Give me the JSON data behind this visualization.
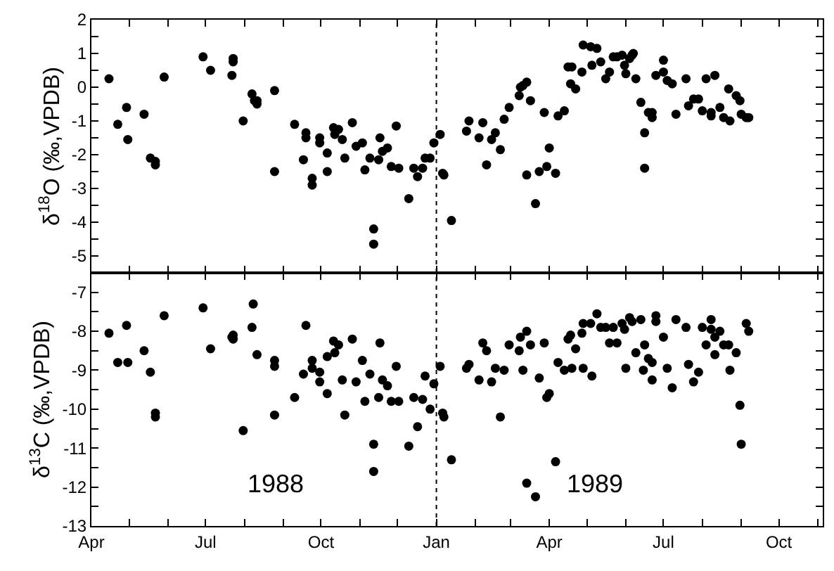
{
  "chart_data": [
    {
      "type": "scatter",
      "ylabel": "δ$^{18}$O (‰,VPDB)",
      "marker": "circle",
      "tick_labels": "y",
      "xlim": [
        "1988-04-01",
        "1989-11-05"
      ],
      "xticks": [
        {
          "value": "1988-04-01",
          "label": null
        },
        {
          "value": "1988-05-01",
          "label": null
        },
        {
          "value": "1988-06-01",
          "label": null
        },
        {
          "value": "1988-07-01",
          "label": null
        },
        {
          "value": "1988-08-01",
          "label": null
        },
        {
          "value": "1988-09-01",
          "label": null
        },
        {
          "value": "1988-10-01",
          "label": null
        },
        {
          "value": "1988-11-01",
          "label": null
        },
        {
          "value": "1988-12-01",
          "label": null
        },
        {
          "value": "1989-01-01",
          "label": null
        },
        {
          "value": "1989-02-01",
          "label": null
        },
        {
          "value": "1989-03-01",
          "label": null
        },
        {
          "value": "1989-04-01",
          "label": null
        },
        {
          "value": "1989-05-01",
          "label": null
        },
        {
          "value": "1989-06-01",
          "label": null
        },
        {
          "value": "1989-07-01",
          "label": null
        },
        {
          "value": "1989-08-01",
          "label": null
        },
        {
          "value": "1989-09-01",
          "label": null
        },
        {
          "value": "1989-10-01",
          "label": null
        },
        {
          "value": "1989-11-01",
          "label": null
        }
      ],
      "ylim": [
        -5.5,
        2
      ],
      "yticks": [
        -5,
        {
          "value": -4.5,
          "label": null
        },
        -4,
        {
          "value": -3.5,
          "label": null
        },
        -3,
        {
          "value": -2.5,
          "label": null
        },
        -2,
        {
          "value": -1.5,
          "label": null
        },
        -1,
        {
          "value": -0.5,
          "label": null
        },
        0,
        {
          "value": 0.5,
          "label": null
        },
        1,
        {
          "value": 1.5,
          "label": null
        },
        2
      ],
      "ref_lines": [
        {
          "axis": "x",
          "value": "1989-01-01",
          "line_style": "dotted",
          "color": "#000000"
        }
      ],
      "x": [
        "1988-04-15",
        "1988-04-22",
        "1988-04-29",
        "1988-04-30",
        "1988-05-13",
        "1988-05-18",
        "1988-05-22",
        "1988-05-22",
        "1988-05-29",
        "1988-06-29",
        "1988-07-05",
        "1988-07-22",
        "1988-07-23",
        "1988-07-23",
        "1988-07-31",
        "1988-08-07",
        "1988-08-09",
        "1988-08-11",
        "1988-08-11",
        "1988-08-25",
        "1988-08-25",
        "1988-09-10",
        "1988-09-17",
        "1988-09-19",
        "1988-09-19",
        "1988-09-24",
        "1988-09-24",
        "1988-09-30",
        "1988-09-30",
        "1988-10-06",
        "1988-10-06",
        "1988-10-11",
        "1988-10-12",
        "1988-10-15",
        "1988-10-18",
        "1988-10-20",
        "1988-10-26",
        "1988-10-29",
        "1988-11-03",
        "1988-11-05",
        "1988-11-09",
        "1988-11-12",
        "1988-11-12",
        "1988-11-16",
        "1988-11-17",
        "1988-11-19",
        "1988-11-23",
        "1988-11-26",
        "1988-11-30",
        "1988-12-02",
        "1988-12-10",
        "1988-12-14",
        "1988-12-17",
        "1988-12-21",
        "1988-12-23",
        "1988-12-27",
        "1988-12-30",
        "1989-01-04",
        "1989-01-06",
        "1989-01-07",
        "1989-01-13",
        "1989-01-25",
        "1989-01-27",
        "1989-02-04",
        "1989-02-07",
        "1989-02-10",
        "1989-02-14",
        "1989-02-17",
        "1989-02-21",
        "1989-02-24",
        "1989-02-28",
        "1989-03-08",
        "1989-03-09",
        "1989-03-11",
        "1989-03-14",
        "1989-03-14",
        "1989-03-17",
        "1989-03-21",
        "1989-03-24",
        "1989-03-28",
        "1989-03-30",
        "1989-04-01",
        "1989-04-06",
        "1989-04-08",
        "1989-04-13",
        "1989-04-16",
        "1989-04-19",
        "1989-04-18",
        "1989-04-22",
        "1989-04-27",
        "1989-04-28",
        "1989-05-04",
        "1989-05-05",
        "1989-05-09",
        "1989-05-12",
        "1989-05-16",
        "1989-05-19",
        "1989-05-22",
        "1989-05-25",
        "1989-05-29",
        "1989-05-31",
        "1989-06-01",
        "1989-06-04",
        "1989-06-06",
        "1989-06-07",
        "1989-06-09",
        "1989-06-13",
        "1989-06-16",
        "1989-06-16",
        "1989-06-19",
        "1989-06-22",
        "1989-06-22",
        "1989-06-25",
        "1989-07-01",
        "1989-07-01",
        "1989-07-04",
        "1989-07-08",
        "1989-07-11",
        "1989-07-19",
        "1989-07-21",
        "1989-07-25",
        "1989-07-29",
        "1989-08-01",
        "1989-08-04",
        "1989-08-08",
        "1989-08-08",
        "1989-08-11",
        "1989-08-15",
        "1989-08-18",
        "1989-08-22",
        "1989-08-23",
        "1989-08-28",
        "1989-08-31",
        "1989-09-01",
        "1989-09-05",
        "1989-09-07"
      ],
      "series": [
        {
          "color": "#000000",
          "values": [
            0.25,
            -1.1,
            -0.6,
            -1.55,
            -0.8,
            -2.1,
            -2.2,
            -2.3,
            0.3,
            0.9,
            0.5,
            0.35,
            0.85,
            0.75,
            -1.0,
            -0.2,
            -0.4,
            -0.4,
            -0.5,
            -0.1,
            -2.5,
            -1.1,
            -2.15,
            -1.35,
            -1.5,
            -2.7,
            -2.9,
            -1.5,
            -1.65,
            -1.95,
            -2.5,
            -1.2,
            -1.4,
            -1.25,
            -1.55,
            -2.1,
            -1.05,
            -1.75,
            -1.65,
            -2.45,
            -2.1,
            -4.2,
            -4.65,
            -2.15,
            -1.5,
            -1.9,
            -1.8,
            -2.35,
            -1.15,
            -2.4,
            -3.3,
            -2.4,
            -2.65,
            -2.4,
            -2.1,
            -2.1,
            -1.65,
            -1.4,
            -2.55,
            -2.6,
            -3.95,
            -1.3,
            -1.0,
            -1.5,
            -1.05,
            -2.3,
            -1.55,
            -1.35,
            -1.85,
            -0.95,
            -0.6,
            -0.25,
            0.0,
            0.05,
            0.15,
            -2.6,
            -0.4,
            -3.45,
            -2.5,
            -0.75,
            -2.35,
            -1.8,
            -2.55,
            -0.85,
            -0.7,
            0.6,
            0.6,
            0.1,
            -0.05,
            0.45,
            1.25,
            1.2,
            0.65,
            1.15,
            0.75,
            0.25,
            0.45,
            0.9,
            0.9,
            0.95,
            0.65,
            0.4,
            0.85,
            0.95,
            1.0,
            0.25,
            -0.45,
            -1.35,
            -2.4,
            -0.75,
            -0.75,
            -0.9,
            0.35,
            0.45,
            0.8,
            0.2,
            0.1,
            -0.8,
            0.25,
            -0.55,
            -0.35,
            -0.35,
            -0.7,
            0.25,
            -0.75,
            -0.85,
            0.35,
            -0.6,
            -0.9,
            -0.05,
            -1.0,
            -0.25,
            -0.4,
            -0.8,
            -0.9,
            -0.9
          ]
        }
      ]
    },
    {
      "type": "scatter",
      "ylabel": "δ$^{13}$C (‰,VPDB)",
      "marker": "circle",
      "xlim": [
        "1988-04-01",
        "1989-11-05"
      ],
      "xticks": [
        {
          "value": "1988-04-01",
          "label": "Apr"
        },
        {
          "value": "1988-05-01",
          "label": null
        },
        {
          "value": "1988-06-01",
          "label": null
        },
        {
          "value": "1988-07-01",
          "label": "Jul"
        },
        {
          "value": "1988-08-01",
          "label": null
        },
        {
          "value": "1988-09-01",
          "label": null
        },
        {
          "value": "1988-10-01",
          "label": "Oct"
        },
        {
          "value": "1988-11-01",
          "label": null
        },
        {
          "value": "1988-12-01",
          "label": null
        },
        {
          "value": "1989-01-01",
          "label": "Jan"
        },
        {
          "value": "1989-02-01",
          "label": null
        },
        {
          "value": "1989-03-01",
          "label": null
        },
        {
          "value": "1989-04-01",
          "label": "Apr"
        },
        {
          "value": "1989-05-01",
          "label": null
        },
        {
          "value": "1989-06-01",
          "label": null
        },
        {
          "value": "1989-07-01",
          "label": "Jul"
        },
        {
          "value": "1989-08-01",
          "label": null
        },
        {
          "value": "1989-09-01",
          "label": null
        },
        {
          "value": "1989-10-01",
          "label": "Oct"
        },
        {
          "value": "1989-11-01",
          "label": null
        }
      ],
      "ylim": [
        -13,
        -6.5
      ],
      "yticks": [
        -13,
        {
          "value": -12.5,
          "label": null
        },
        -12,
        {
          "value": -11.5,
          "label": null
        },
        -11,
        {
          "value": -10.5,
          "label": null
        },
        -10,
        {
          "value": -9.5,
          "label": null
        },
        -9,
        {
          "value": -8.5,
          "label": null
        },
        -8,
        {
          "value": -7.5,
          "label": null
        },
        -7
      ],
      "ref_lines": [
        {
          "axis": "x",
          "value": "1989-01-01",
          "line_style": "dotted",
          "color": "#000000"
        }
      ],
      "annotations": [
        "1988",
        "1989"
      ],
      "x": [
        "1988-04-15",
        "1988-04-22",
        "1988-04-29",
        "1988-04-30",
        "1988-05-13",
        "1988-05-18",
        "1988-05-22",
        "1988-05-22",
        "1988-05-29",
        "1988-06-29",
        "1988-07-05",
        "1988-07-22",
        "1988-07-23",
        "1988-07-23",
        "1988-07-31",
        "1988-08-07",
        "1988-08-08",
        "1988-08-11",
        "1988-08-25",
        "1988-08-25",
        "1988-08-25",
        "1988-09-10",
        "1988-09-17",
        "1988-09-19",
        "1988-09-24",
        "1988-09-24",
        "1988-09-30",
        "1988-09-30",
        "1988-10-06",
        "1988-10-06",
        "1988-10-11",
        "1988-10-12",
        "1988-10-15",
        "1988-10-18",
        "1988-10-20",
        "1988-10-26",
        "1988-10-29",
        "1988-11-03",
        "1988-11-05",
        "1988-11-09",
        "1988-11-12",
        "1988-11-12",
        "1988-11-16",
        "1988-11-17",
        "1988-11-19",
        "1988-11-23",
        "1988-11-26",
        "1988-11-30",
        "1988-12-02",
        "1988-12-10",
        "1988-12-14",
        "1988-12-17",
        "1988-12-21",
        "1988-12-23",
        "1988-12-27",
        "1988-12-30",
        "1989-01-04",
        "1989-01-06",
        "1989-01-07",
        "1989-01-13",
        "1989-01-25",
        "1989-01-27",
        "1989-02-04",
        "1989-02-07",
        "1989-02-10",
        "1989-02-14",
        "1989-02-17",
        "1989-02-21",
        "1989-02-24",
        "1989-02-28",
        "1989-03-08",
        "1989-03-09",
        "1989-03-11",
        "1989-03-14",
        "1989-03-14",
        "1989-03-17",
        "1989-03-21",
        "1989-03-24",
        "1989-03-28",
        "1989-03-30",
        "1989-04-01",
        "1989-04-06",
        "1989-04-08",
        "1989-04-13",
        "1989-04-16",
        "1989-04-18",
        "1989-04-19",
        "1989-04-22",
        "1989-04-27",
        "1989-04-28",
        "1989-04-28",
        "1989-05-04",
        "1989-05-05",
        "1989-05-09",
        "1989-05-12",
        "1989-05-16",
        "1989-05-19",
        "1989-05-22",
        "1989-05-25",
        "1989-05-29",
        "1989-05-31",
        "1989-06-01",
        "1989-06-04",
        "1989-06-06",
        "1989-06-09",
        "1989-06-13",
        "1989-06-15",
        "1989-06-16",
        "1989-06-19",
        "1989-06-22",
        "1989-06-22",
        "1989-06-25",
        "1989-06-25",
        "1989-07-01",
        "1989-07-04",
        "1989-07-08",
        "1989-07-11",
        "1989-07-19",
        "1989-07-21",
        "1989-07-25",
        "1989-07-29",
        "1989-08-01",
        "1989-08-04",
        "1989-08-08",
        "1989-08-08",
        "1989-08-11",
        "1989-08-11",
        "1989-08-15",
        "1989-08-18",
        "1989-08-22",
        "1989-08-23",
        "1989-08-28",
        "1989-08-31",
        "1989-09-01",
        "1989-09-05",
        "1989-09-07"
      ],
      "series": [
        {
          "color": "#000000",
          "values": [
            -8.05,
            -8.8,
            -7.85,
            -8.8,
            -8.5,
            -9.05,
            -10.1,
            -10.2,
            -7.6,
            -7.4,
            -8.45,
            -8.15,
            -8.1,
            -8.2,
            -10.55,
            -7.9,
            -7.3,
            -8.6,
            -8.75,
            -8.9,
            -10.15,
            -9.7,
            -9.1,
            -7.85,
            -8.75,
            -8.95,
            -9.05,
            -9.3,
            -9.6,
            -8.65,
            -8.25,
            -8.55,
            -8.35,
            -9.25,
            -10.15,
            -8.2,
            -9.3,
            -8.75,
            -9.8,
            -9.1,
            -10.9,
            -11.6,
            -9.7,
            -8.3,
            -9.25,
            -9.4,
            -9.8,
            -8.9,
            -9.8,
            -10.95,
            -9.7,
            -10.45,
            -9.75,
            -9.15,
            -10.0,
            -9.35,
            -8.9,
            -10.1,
            -10.2,
            -11.3,
            -8.95,
            -8.85,
            -9.25,
            -8.3,
            -8.5,
            -9.3,
            -8.95,
            -10.2,
            -9.0,
            -8.35,
            -8.5,
            -8.15,
            -9.0,
            -8.0,
            -11.9,
            -8.35,
            -12.25,
            -9.2,
            -8.3,
            -9.7,
            -9.6,
            -11.35,
            -8.8,
            -9.0,
            -8.2,
            -8.1,
            -8.95,
            -8.45,
            -8.05,
            -8.95,
            -7.8,
            -7.8,
            -9.15,
            -7.55,
            -7.9,
            -7.9,
            -8.3,
            -7.9,
            -8.3,
            -7.8,
            -7.95,
            -8.95,
            -7.65,
            -7.75,
            -8.55,
            -7.7,
            -9.0,
            -8.35,
            -8.7,
            -8.8,
            -9.25,
            -7.6,
            -7.75,
            -8.15,
            -8.95,
            -9.45,
            -7.7,
            -7.9,
            -8.85,
            -9.3,
            -9.05,
            -7.9,
            -8.35,
            -7.7,
            -7.95,
            -8.6,
            -8.15,
            -8.0,
            -8.35,
            -8.35,
            -9.0,
            -8.55,
            -9.9,
            -10.9,
            -7.8,
            -8.0
          ]
        }
      ]
    }
  ]
}
